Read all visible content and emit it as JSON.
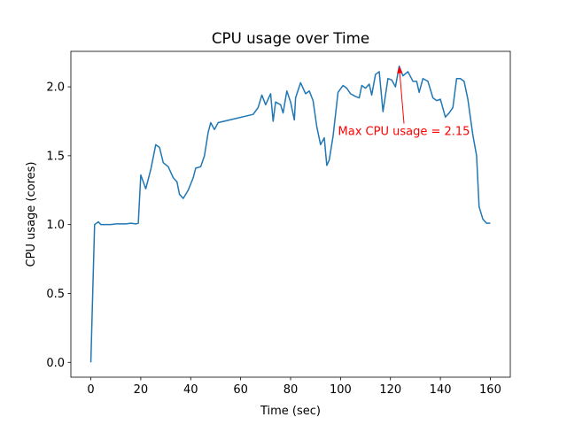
{
  "chart_data": {
    "type": "line",
    "title": "CPU usage over Time",
    "xlabel": "Time (sec)",
    "ylabel": "CPU usage (cores)",
    "color": "#1f77b4",
    "x": [
      0,
      1.5,
      3,
      4,
      6,
      8,
      10,
      12,
      14,
      16,
      18,
      19,
      20,
      22,
      24,
      26,
      27.5,
      29,
      31,
      33,
      34.5,
      35.5,
      37,
      39,
      41,
      42,
      44,
      45.5,
      47,
      48,
      49.5,
      51,
      65,
      67,
      68.5,
      70,
      72,
      73,
      74,
      76,
      77,
      78.5,
      80,
      81.5,
      82,
      84,
      86,
      87.5,
      89,
      90.5,
      92,
      93.5,
      94.5,
      95.5,
      97,
      99,
      101,
      102.5,
      104,
      106,
      107.5,
      108.5,
      110,
      111.5,
      112.5,
      114,
      115.5,
      117,
      119,
      120.5,
      122,
      123.5,
      125,
      127,
      129,
      130.5,
      131.5,
      133,
      135,
      137,
      138.5,
      140,
      142,
      143.5,
      145,
      146.5,
      148,
      149.5,
      151,
      153,
      154.5,
      155.5,
      157,
      158.5,
      160
    ],
    "values": [
      0,
      1.0,
      1.02,
      1.0,
      1.0,
      1.0,
      1.005,
      1.005,
      1.005,
      1.01,
      1.005,
      1.01,
      1.36,
      1.26,
      1.4,
      1.58,
      1.56,
      1.45,
      1.42,
      1.34,
      1.31,
      1.22,
      1.19,
      1.25,
      1.34,
      1.41,
      1.42,
      1.5,
      1.67,
      1.74,
      1.69,
      1.74,
      1.8,
      1.85,
      1.94,
      1.87,
      1.95,
      1.75,
      1.89,
      1.87,
      1.81,
      1.97,
      1.89,
      1.76,
      1.92,
      2.03,
      1.95,
      1.97,
      1.9,
      1.71,
      1.58,
      1.63,
      1.43,
      1.47,
      1.64,
      1.96,
      2.01,
      1.99,
      1.95,
      1.93,
      1.92,
      2.01,
      1.99,
      2.02,
      1.94,
      2.09,
      2.11,
      1.82,
      2.06,
      2.05,
      2.0,
      2.15,
      2.08,
      2.11,
      2.04,
      2.04,
      1.96,
      2.06,
      2.04,
      1.92,
      1.9,
      1.91,
      1.78,
      1.81,
      1.85,
      2.06,
      2.06,
      2.04,
      1.91,
      1.65,
      1.5,
      1.13,
      1.04,
      1.01,
      1.01
    ],
    "xlim": [
      -8,
      168
    ],
    "ylim": [
      -0.1075,
      2.2575
    ],
    "xticks": [
      0,
      20,
      40,
      60,
      80,
      100,
      120,
      140,
      160
    ],
    "yticks": [
      {
        "value": 0,
        "label": "0.0"
      },
      {
        "value": 0.5,
        "label": "0.5"
      },
      {
        "value": 1,
        "label": "1.0"
      },
      {
        "value": 1.5,
        "label": "1.5"
      },
      {
        "value": 2,
        "label": "2.0"
      }
    ],
    "annotation": {
      "text": "Max CPU usage = 2.15",
      "xy": [
        123.5,
        2.15
      ],
      "xytext": [
        99,
        1.65
      ],
      "color": "red"
    }
  }
}
